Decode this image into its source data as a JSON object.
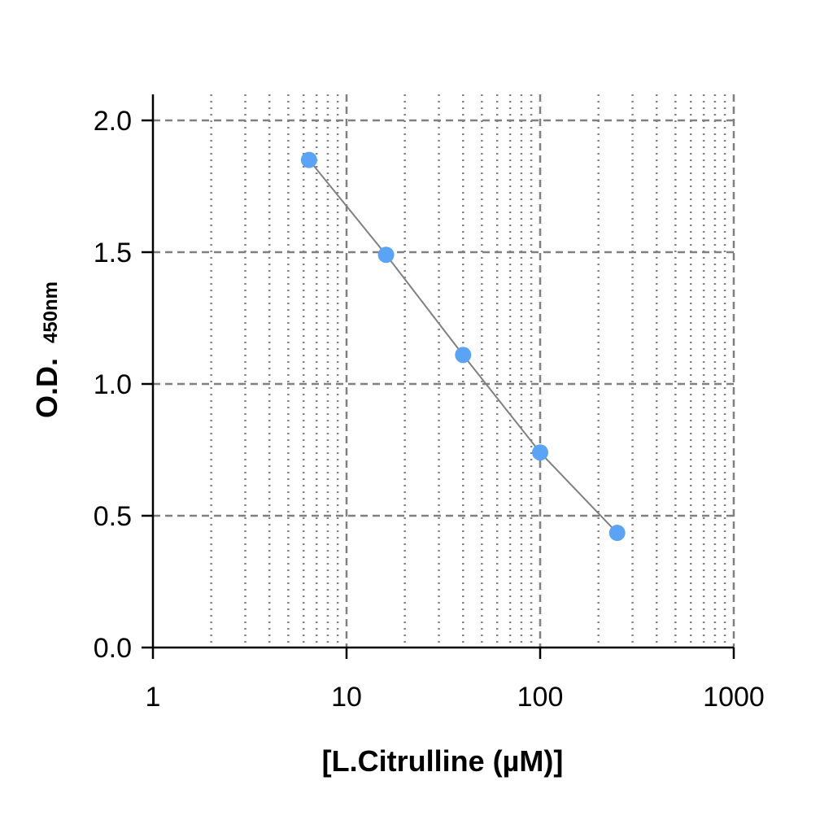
{
  "chart_data": {
    "type": "scatter",
    "title": "",
    "xlabel": "[L.Citrulline (µM)]",
    "ylabel_main": "O.D.",
    "ylabel_sub": "450nm",
    "x_scale": "log",
    "xlim": [
      1,
      1000
    ],
    "ylim": [
      0,
      2.1
    ],
    "x_ticks": [
      1,
      10,
      100,
      1000
    ],
    "x_tick_labels": [
      "1",
      "10",
      "100",
      "1000"
    ],
    "y_ticks": [
      0,
      0.5,
      1.0,
      1.5,
      2.0
    ],
    "y_tick_labels": [
      "0.0",
      "0.5",
      "1.0",
      "1.5",
      "2.0"
    ],
    "grid": "on",
    "series": [
      {
        "x": [
          6.4,
          16,
          40,
          100,
          250
        ],
        "y": [
          1.85,
          1.49,
          1.11,
          0.74,
          0.435
        ],
        "color": "#5ba3f5",
        "fit_line": true,
        "fit_color": "#808080"
      }
    ]
  }
}
